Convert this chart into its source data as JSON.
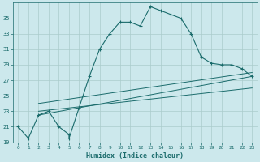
{
  "xlabel": "Humidex (Indice chaleur)",
  "ylabel": "",
  "bg_color": "#cce8ec",
  "grid_color": "#aacccc",
  "line_color": "#1a6b6b",
  "xlim": [
    -0.5,
    23.5
  ],
  "ylim": [
    19,
    37
  ],
  "yticks": [
    19,
    21,
    23,
    25,
    27,
    29,
    31,
    33,
    35
  ],
  "xticks": [
    0,
    1,
    2,
    3,
    4,
    5,
    6,
    7,
    8,
    9,
    10,
    11,
    12,
    13,
    14,
    15,
    16,
    17,
    18,
    19,
    20,
    21,
    22,
    23
  ],
  "series1_x": [
    0,
    1,
    2,
    3,
    4,
    5,
    5,
    6,
    7,
    8,
    9,
    10,
    11,
    12,
    13,
    14,
    15,
    16,
    17,
    18,
    19,
    20,
    21,
    22,
    23
  ],
  "series1_y": [
    21,
    19.5,
    22.5,
    23,
    21,
    20,
    19.5,
    23.5,
    27.5,
    31,
    33,
    34.5,
    34.5,
    34,
    36.5,
    36,
    35.5,
    35,
    33,
    30,
    29.2,
    29,
    29,
    28.5,
    27.5
  ],
  "series2_x": [
    2,
    23
  ],
  "series2_y": [
    22.5,
    27.5
  ],
  "series3_x": [
    2,
    23
  ],
  "series3_y": [
    23.0,
    26.0
  ],
  "series4_x": [
    2,
    23
  ],
  "series4_y": [
    24.0,
    28.0
  ]
}
